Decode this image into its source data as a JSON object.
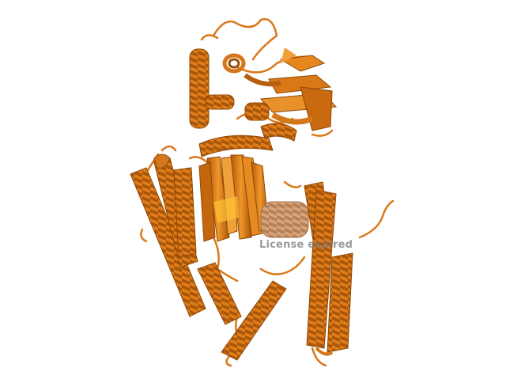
{
  "watermark": {
    "text": "License expired"
  },
  "colors": {
    "background": "#ffffff",
    "cartoon_main": "#e07d1a",
    "cartoon_dark": "#9c4f08",
    "cartoon_light": "#f6b24c",
    "strand_highlight": "#ffc234",
    "interior_pale": "#c89a72"
  }
}
